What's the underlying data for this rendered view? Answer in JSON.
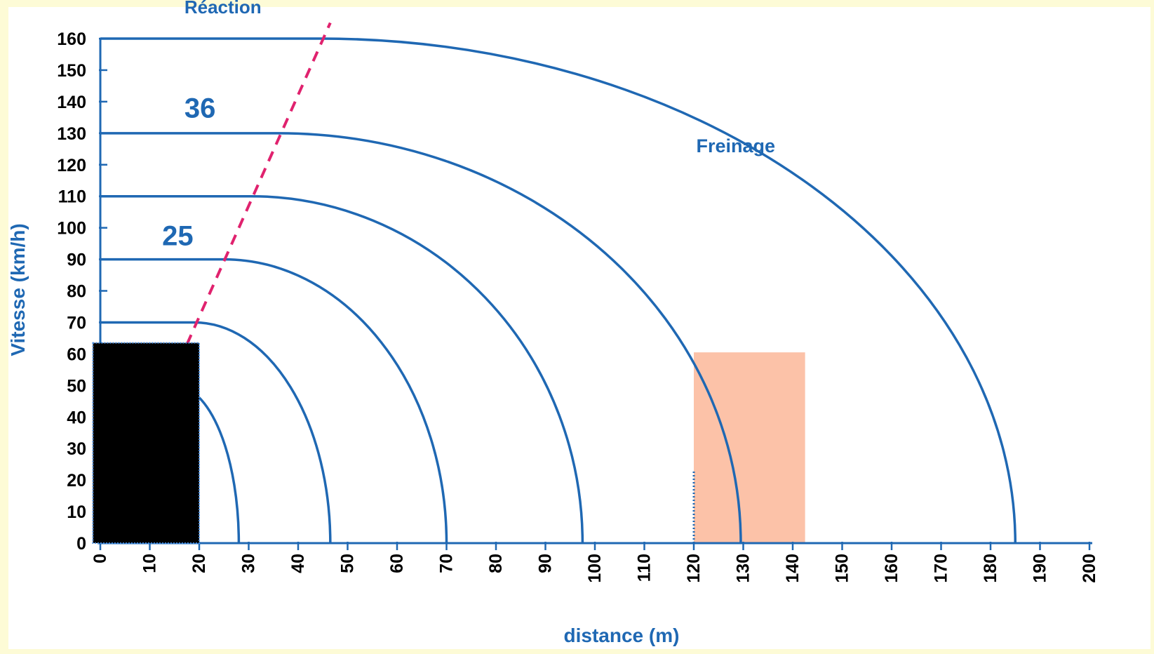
{
  "chart_data": {
    "type": "line",
    "title": "",
    "xlabel": "distance (m)",
    "ylabel": "Vitesse (km/h)",
    "xlim": [
      0,
      200
    ],
    "ylim": [
      0,
      160
    ],
    "x_ticks": [
      0,
      10,
      20,
      30,
      40,
      50,
      60,
      70,
      80,
      90,
      100,
      110,
      120,
      130,
      140,
      150,
      160,
      170,
      180,
      190,
      200
    ],
    "y_ticks": [
      0,
      10,
      20,
      30,
      40,
      50,
      60,
      70,
      80,
      90,
      100,
      110,
      120,
      130,
      140,
      150,
      160
    ],
    "grid": false,
    "series": [
      {
        "speed": 50,
        "reaction_distance": 15,
        "stopping_distance": 28
      },
      {
        "speed": 70,
        "reaction_distance": 19,
        "stopping_distance": 46.5
      },
      {
        "speed": 90,
        "reaction_distance": 25,
        "stopping_distance": 70
      },
      {
        "speed": 110,
        "reaction_distance": 30.5,
        "stopping_distance": 97.5
      },
      {
        "speed": 130,
        "reaction_distance": 36,
        "stopping_distance": 129.5
      },
      {
        "speed": 160,
        "reaction_distance": 44.5,
        "stopping_distance": 185
      }
    ],
    "reaction_line": {
      "from": [
        17.5,
        63
      ],
      "to": [
        46.5,
        165
      ]
    },
    "annotations": [
      {
        "text": "Réaction",
        "x": 17,
        "y": 168
      },
      {
        "text": "36",
        "x": 17,
        "y": 135
      },
      {
        "text": "25",
        "x": 12.5,
        "y": 94.5
      },
      {
        "text": "Freinage",
        "x": 120.5,
        "y": 124
      }
    ],
    "overlays": [
      {
        "kind": "masked-box",
        "x_range": [
          -1.5,
          20
        ],
        "y_range": [
          0,
          63.5
        ],
        "color": "#000000"
      },
      {
        "kind": "highlight-box",
        "x_range": [
          120,
          142.5
        ],
        "y_range": [
          0,
          60.5
        ],
        "color": "#fcc2a8"
      }
    ],
    "colors": {
      "curve": "#1f68b3",
      "reaction_line": "#e0226e",
      "text": "#1f68b3",
      "background": "#fdfbd6"
    }
  }
}
